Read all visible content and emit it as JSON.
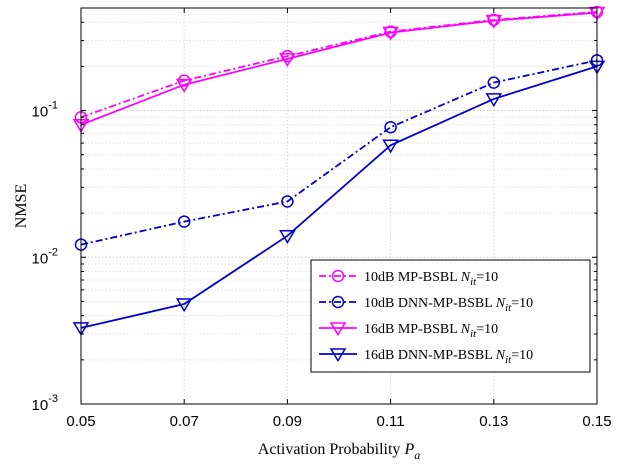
{
  "chart_data": {
    "type": "line",
    "title": "",
    "xlabel_text": "Activation Probability",
    "xlabel_symbol": "P",
    "xlabel_subscript": "a",
    "ylabel": "NMSE",
    "x": [
      0.05,
      0.07,
      0.09,
      0.11,
      0.13,
      0.15
    ],
    "x_tick_labels": [
      "0.05",
      "0.07",
      "0.09",
      "0.11",
      "0.13",
      "0.15"
    ],
    "xlim": [
      0.05,
      0.15
    ],
    "y_scale": "log",
    "ylim": [
      0.001,
      0.5
    ],
    "y_ticks": [
      {
        "base": "10",
        "exp": "-1",
        "value": 0.1
      },
      {
        "base": "10",
        "exp": "-2",
        "value": 0.01
      },
      {
        "base": "10",
        "exp": "-3",
        "value": 0.001
      }
    ],
    "grid": true,
    "legend_position": "lower-right",
    "series": [
      {
        "label_main": "10dB MP-BSBL ",
        "label_sym": "N",
        "label_sub": "it",
        "label_tail": "=10",
        "values": [
          0.09,
          0.16,
          0.235,
          0.345,
          0.415,
          0.47
        ],
        "color": "#ff00ff",
        "dash": "dashdot",
        "marker": "circle"
      },
      {
        "label_main": "10dB DNN-MP-BSBL ",
        "label_sym": "N",
        "label_sub": "it",
        "label_tail": "=10",
        "values": [
          0.0122,
          0.0175,
          0.024,
          0.077,
          0.155,
          0.22
        ],
        "color": "#0000cc",
        "dash": "dashdot",
        "marker": "circle"
      },
      {
        "label_main": "16dB MP-BSBL ",
        "label_sym": "N",
        "label_sub": "it",
        "label_tail": "=10",
        "values": [
          0.08,
          0.15,
          0.225,
          0.34,
          0.41,
          0.465
        ],
        "color": "#ff00ff",
        "dash": "solid",
        "marker": "triangle-down"
      },
      {
        "label_main": "16dB DNN-MP-BSBL ",
        "label_sym": "N",
        "label_sub": "it",
        "label_tail": "=10",
        "values": [
          0.0033,
          0.0048,
          0.014,
          0.058,
          0.12,
          0.2
        ],
        "color": "#0000cc",
        "dash": "solid",
        "marker": "triangle-down"
      }
    ]
  }
}
